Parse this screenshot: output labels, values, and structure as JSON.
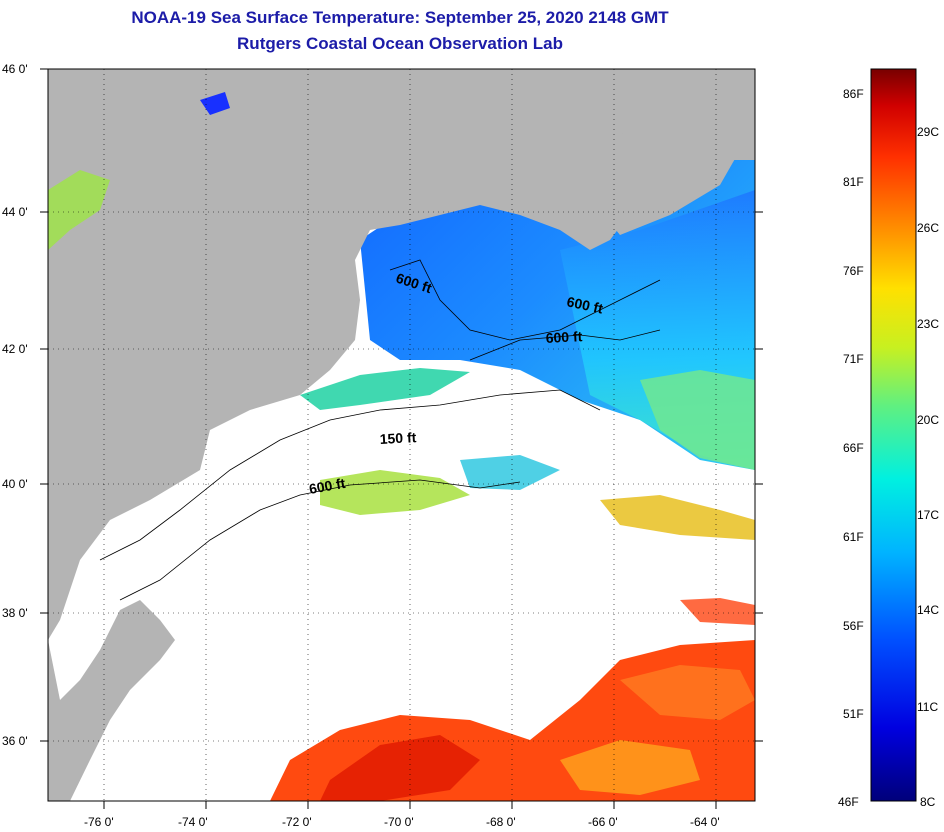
{
  "header": {
    "title": "NOAA-19 Sea Surface Temperature:  September 25, 2020 2148 GMT",
    "subtitle": "Rutgers Coastal Ocean Observation Lab"
  },
  "axes": {
    "lat_labels": [
      "46 0'",
      "44 0'",
      "42 0'",
      "40 0'",
      "38 0'",
      "36 0'"
    ],
    "lon_labels": [
      "-76 0'",
      "-74 0'",
      "-72 0'",
      "-70 0'",
      "-68 0'",
      "-66 0'",
      "-64 0'"
    ]
  },
  "contours": {
    "labels": [
      "600 ft",
      "600 ft",
      "600 ft",
      "150 ft",
      "600 ft"
    ]
  },
  "colorbar": {
    "fahrenheit": [
      "86F",
      "81F",
      "76F",
      "71F",
      "66F",
      "61F",
      "56F",
      "51F",
      "46F"
    ],
    "celsius": [
      "29C",
      "26C",
      "23C",
      "20C",
      "17C",
      "14C",
      "11C",
      "8C"
    ]
  },
  "colors": {
    "land": "#b4b4b4",
    "title": "#1c1ca8"
  }
}
